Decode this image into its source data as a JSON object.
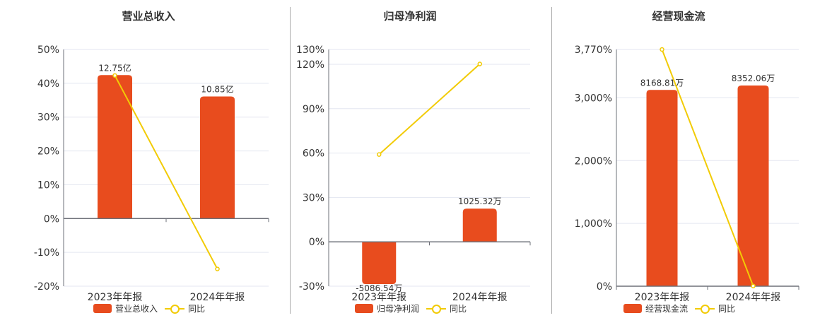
{
  "colors": {
    "bar": "#e84c1e",
    "line": "#f2cb05",
    "grid": "#e3e6f0",
    "axis": "#6e7079",
    "text": "#333333"
  },
  "chart_data": [
    {
      "type": "bar+line",
      "title": "营业总收入",
      "categories": [
        "2023年年报",
        "2024年年报"
      ],
      "bar_series": {
        "name": "营业总收入",
        "values": [
          12.75,
          10.85
        ],
        "unit": "亿",
        "labels": [
          "12.75亿",
          "10.85亿"
        ]
      },
      "line_series": {
        "name": "同比",
        "values": [
          42.3,
          -14.9
        ]
      },
      "ylim": [
        -20,
        50
      ],
      "yticks": [
        -20,
        -10,
        0,
        10,
        20,
        30,
        40,
        50
      ],
      "ytick_labels": [
        "-20%",
        "-10%",
        "0%",
        "10%",
        "20%",
        "30%",
        "40%",
        "50%"
      ],
      "grid": true,
      "legend": "bottom"
    },
    {
      "type": "bar+line",
      "title": "归母净利润",
      "categories": [
        "2023年年报",
        "2024年年报"
      ],
      "bar_series": {
        "name": "归母净利润",
        "values": [
          -5086.54,
          1025.32
        ],
        "unit": "万",
        "labels": [
          "-5086.54万",
          "1025.32万"
        ]
      },
      "line_series": {
        "name": "同比",
        "values": [
          59,
          120.2
        ]
      },
      "ylim": [
        -30,
        130
      ],
      "yticks": [
        -30,
        0,
        30,
        60,
        90,
        120,
        130
      ],
      "ytick_labels": [
        "-30%",
        "0%",
        "30%",
        "60%",
        "90%",
        "120%",
        "130%"
      ],
      "grid": true,
      "legend": "bottom"
    },
    {
      "type": "bar+line",
      "title": "经营现金流",
      "categories": [
        "2023年年报",
        "2024年年报"
      ],
      "bar_series": {
        "name": "经营现金流",
        "values": [
          8168.81,
          8352.06
        ],
        "unit": "万",
        "labels": [
          "8168.81万",
          "8352.06万"
        ]
      },
      "line_series": {
        "name": "同比",
        "values": [
          3770,
          2.24
        ]
      },
      "ylim": [
        0,
        3770
      ],
      "yticks": [
        0,
        1000,
        2000,
        3000,
        3770
      ],
      "ytick_labels": [
        "0%",
        "1,000%",
        "2,000%",
        "3,000%",
        "3,770%"
      ],
      "grid": true,
      "legend": "bottom"
    }
  ]
}
